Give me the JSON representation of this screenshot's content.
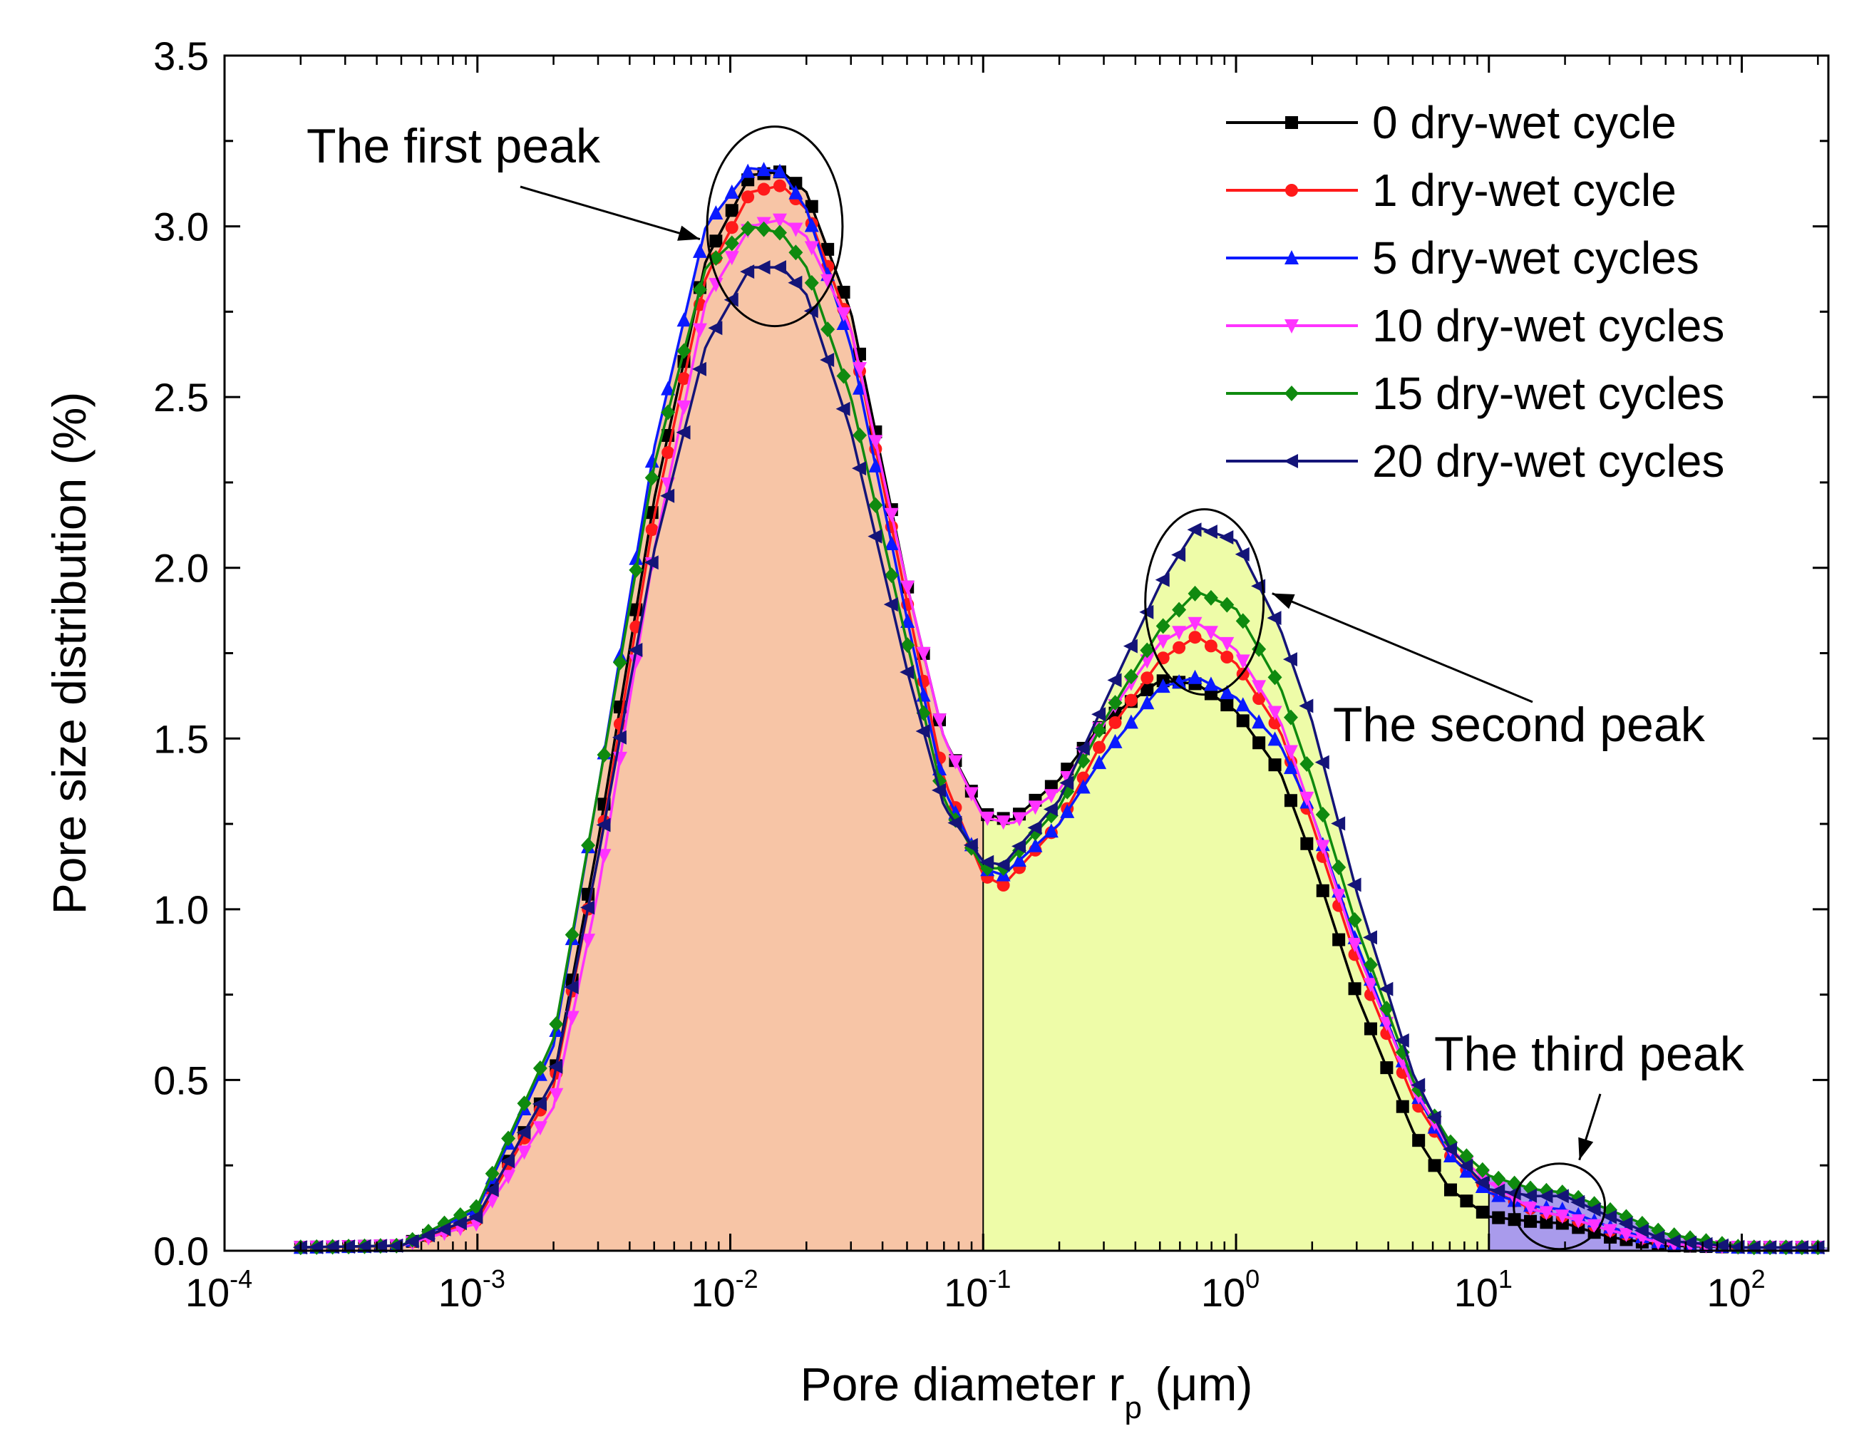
{
  "chart_data": {
    "type": "line",
    "xscale": "log",
    "xlabel": "Pore diameter  rp (μm)",
    "xlabel_main": "Pore diameter  r",
    "xlabel_sub": "p",
    "xlabel_unit": " (μm)",
    "ylabel": "Pore size distribution (%)",
    "xlim": [
      0.0001,
      220
    ],
    "ylim": [
      0,
      3.5
    ],
    "yticks": [
      "0.0",
      "0.5",
      "1.0",
      "1.5",
      "2.0",
      "2.5",
      "3.0",
      "3.5"
    ],
    "xtick_base": "10",
    "xtick_exponents": [
      "-4",
      "-3",
      "-2",
      "-1",
      "0",
      "1",
      "2"
    ],
    "legend_position": "top-right",
    "regions": [
      {
        "name": "first-region",
        "x_range": [
          0.0002,
          0.1
        ],
        "color": "#f7c5a6"
      },
      {
        "name": "second-region",
        "x_range": [
          0.1,
          10
        ],
        "color": "#eefca8"
      },
      {
        "name": "third-region",
        "x_range": [
          10,
          220
        ],
        "color": "#a99bec"
      }
    ],
    "annotations": [
      {
        "name": "first-peak",
        "text": "The first peak",
        "x": 0.015,
        "y": 3.0
      },
      {
        "name": "second-peak",
        "text": "The second peak",
        "x": 0.75,
        "y": 1.9
      },
      {
        "name": "third-peak",
        "text": "The third peak",
        "x": 19,
        "y": 0.13
      }
    ],
    "series": [
      {
        "name": "0 dry-wet cycle",
        "label": "0 dry-wet cycle",
        "color": "#000000",
        "marker": "square",
        "points": [
          [
            0.0002,
            0.01
          ],
          [
            0.0005,
            0.015
          ],
          [
            0.001,
            0.1
          ],
          [
            0.002,
            0.5
          ],
          [
            0.003,
            1.2
          ],
          [
            0.005,
            2.2
          ],
          [
            0.008,
            2.9
          ],
          [
            0.012,
            3.15
          ],
          [
            0.016,
            3.16
          ],
          [
            0.02,
            3.1
          ],
          [
            0.03,
            2.75
          ],
          [
            0.05,
            1.95
          ],
          [
            0.07,
            1.5
          ],
          [
            0.1,
            1.28
          ],
          [
            0.13,
            1.26
          ],
          [
            0.2,
            1.38
          ],
          [
            0.3,
            1.55
          ],
          [
            0.5,
            1.67
          ],
          [
            0.7,
            1.66
          ],
          [
            1.0,
            1.58
          ],
          [
            1.5,
            1.4
          ],
          [
            2,
            1.15
          ],
          [
            3,
            0.75
          ],
          [
            5,
            0.35
          ],
          [
            7,
            0.18
          ],
          [
            10,
            0.1
          ],
          [
            15,
            0.085
          ],
          [
            20,
            0.08
          ],
          [
            30,
            0.04
          ],
          [
            50,
            0.015
          ],
          [
            100,
            0.01
          ],
          [
            200,
            0.01
          ]
        ]
      },
      {
        "name": "1 dry-wet cycle",
        "label": "1 dry-wet cycle",
        "color": "#ff1a1a",
        "marker": "circle",
        "points": [
          [
            0.0002,
            0.01
          ],
          [
            0.0005,
            0.015
          ],
          [
            0.001,
            0.09
          ],
          [
            0.002,
            0.48
          ],
          [
            0.003,
            1.15
          ],
          [
            0.005,
            2.15
          ],
          [
            0.008,
            2.85
          ],
          [
            0.012,
            3.1
          ],
          [
            0.016,
            3.12
          ],
          [
            0.02,
            3.05
          ],
          [
            0.03,
            2.7
          ],
          [
            0.05,
            1.9
          ],
          [
            0.07,
            1.38
          ],
          [
            0.1,
            1.1
          ],
          [
            0.12,
            1.07
          ],
          [
            0.2,
            1.25
          ],
          [
            0.3,
            1.5
          ],
          [
            0.5,
            1.73
          ],
          [
            0.7,
            1.8
          ],
          [
            1.0,
            1.72
          ],
          [
            1.5,
            1.52
          ],
          [
            2,
            1.25
          ],
          [
            3,
            0.85
          ],
          [
            5,
            0.45
          ],
          [
            7,
            0.28
          ],
          [
            10,
            0.18
          ],
          [
            15,
            0.12
          ],
          [
            20,
            0.1
          ],
          [
            30,
            0.06
          ],
          [
            50,
            0.02
          ],
          [
            100,
            0.01
          ],
          [
            200,
            0.01
          ]
        ]
      },
      {
        "name": "5 dry-wet cycles",
        "label": "5 dry-wet cycles",
        "color": "#0a1aff",
        "marker": "triangle-up",
        "points": [
          [
            0.0002,
            0.01
          ],
          [
            0.0005,
            0.015
          ],
          [
            0.001,
            0.12
          ],
          [
            0.002,
            0.6
          ],
          [
            0.003,
            1.35
          ],
          [
            0.005,
            2.35
          ],
          [
            0.008,
            3.0
          ],
          [
            0.012,
            3.17
          ],
          [
            0.016,
            3.16
          ],
          [
            0.02,
            3.05
          ],
          [
            0.03,
            2.65
          ],
          [
            0.05,
            1.85
          ],
          [
            0.07,
            1.35
          ],
          [
            0.1,
            1.12
          ],
          [
            0.12,
            1.1
          ],
          [
            0.2,
            1.25
          ],
          [
            0.3,
            1.45
          ],
          [
            0.5,
            1.65
          ],
          [
            0.7,
            1.68
          ],
          [
            1.0,
            1.62
          ],
          [
            1.5,
            1.48
          ],
          [
            2,
            1.28
          ],
          [
            3,
            0.9
          ],
          [
            5,
            0.48
          ],
          [
            7,
            0.28
          ],
          [
            10,
            0.17
          ],
          [
            15,
            0.13
          ],
          [
            20,
            0.12
          ],
          [
            30,
            0.07
          ],
          [
            50,
            0.02
          ],
          [
            100,
            0.01
          ],
          [
            200,
            0.01
          ]
        ]
      },
      {
        "name": "10 dry-wet cycles",
        "label": "10 dry-wet cycles",
        "color": "#ff33ff",
        "marker": "triangle-down",
        "points": [
          [
            0.0002,
            0.01
          ],
          [
            0.0005,
            0.015
          ],
          [
            0.001,
            0.08
          ],
          [
            0.002,
            0.42
          ],
          [
            0.003,
            1.05
          ],
          [
            0.005,
            2.05
          ],
          [
            0.008,
            2.78
          ],
          [
            0.012,
            3.0
          ],
          [
            0.016,
            3.02
          ],
          [
            0.02,
            2.97
          ],
          [
            0.03,
            2.7
          ],
          [
            0.05,
            1.95
          ],
          [
            0.07,
            1.5
          ],
          [
            0.1,
            1.27
          ],
          [
            0.13,
            1.25
          ],
          [
            0.2,
            1.35
          ],
          [
            0.3,
            1.55
          ],
          [
            0.5,
            1.78
          ],
          [
            0.7,
            1.84
          ],
          [
            1.0,
            1.76
          ],
          [
            1.5,
            1.55
          ],
          [
            2,
            1.28
          ],
          [
            3,
            0.88
          ],
          [
            5,
            0.48
          ],
          [
            7,
            0.3
          ],
          [
            10,
            0.2
          ],
          [
            15,
            0.12
          ],
          [
            20,
            0.1
          ],
          [
            30,
            0.06
          ],
          [
            50,
            0.02
          ],
          [
            100,
            0.01
          ],
          [
            200,
            0.01
          ]
        ]
      },
      {
        "name": "15 dry-wet cycles",
        "label": "15 dry-wet cycles",
        "color": "#0f8a0f",
        "marker": "diamond",
        "points": [
          [
            0.0002,
            0.01
          ],
          [
            0.0005,
            0.015
          ],
          [
            0.001,
            0.13
          ],
          [
            0.002,
            0.62
          ],
          [
            0.003,
            1.35
          ],
          [
            0.005,
            2.3
          ],
          [
            0.008,
            2.88
          ],
          [
            0.012,
            3.0
          ],
          [
            0.016,
            2.98
          ],
          [
            0.02,
            2.88
          ],
          [
            0.03,
            2.5
          ],
          [
            0.05,
            1.78
          ],
          [
            0.07,
            1.32
          ],
          [
            0.1,
            1.12
          ],
          [
            0.12,
            1.12
          ],
          [
            0.2,
            1.3
          ],
          [
            0.3,
            1.55
          ],
          [
            0.5,
            1.82
          ],
          [
            0.7,
            1.93
          ],
          [
            1.0,
            1.88
          ],
          [
            1.5,
            1.65
          ],
          [
            2,
            1.38
          ],
          [
            3,
            0.95
          ],
          [
            5,
            0.5
          ],
          [
            7,
            0.32
          ],
          [
            10,
            0.22
          ],
          [
            15,
            0.18
          ],
          [
            20,
            0.17
          ],
          [
            30,
            0.12
          ],
          [
            50,
            0.05
          ],
          [
            100,
            0.01
          ],
          [
            200,
            0.01
          ]
        ]
      },
      {
        "name": "20 dry-wet cycles",
        "label": "20 dry-wet cycles",
        "color": "#141478",
        "marker": "triangle-left",
        "points": [
          [
            0.0002,
            0.01
          ],
          [
            0.0005,
            0.015
          ],
          [
            0.001,
            0.1
          ],
          [
            0.002,
            0.5
          ],
          [
            0.003,
            1.15
          ],
          [
            0.005,
            2.05
          ],
          [
            0.008,
            2.65
          ],
          [
            0.012,
            2.88
          ],
          [
            0.016,
            2.88
          ],
          [
            0.02,
            2.8
          ],
          [
            0.03,
            2.4
          ],
          [
            0.05,
            1.7
          ],
          [
            0.07,
            1.3
          ],
          [
            0.1,
            1.14
          ],
          [
            0.12,
            1.13
          ],
          [
            0.2,
            1.32
          ],
          [
            0.3,
            1.6
          ],
          [
            0.5,
            1.95
          ],
          [
            0.7,
            2.12
          ],
          [
            1.0,
            2.08
          ],
          [
            1.5,
            1.82
          ],
          [
            2,
            1.55
          ],
          [
            3,
            1.05
          ],
          [
            5,
            0.52
          ],
          [
            7,
            0.3
          ],
          [
            10,
            0.18
          ],
          [
            15,
            0.16
          ],
          [
            20,
            0.16
          ],
          [
            30,
            0.1
          ],
          [
            50,
            0.03
          ],
          [
            100,
            0.01
          ],
          [
            200,
            0.01
          ]
        ]
      }
    ]
  }
}
